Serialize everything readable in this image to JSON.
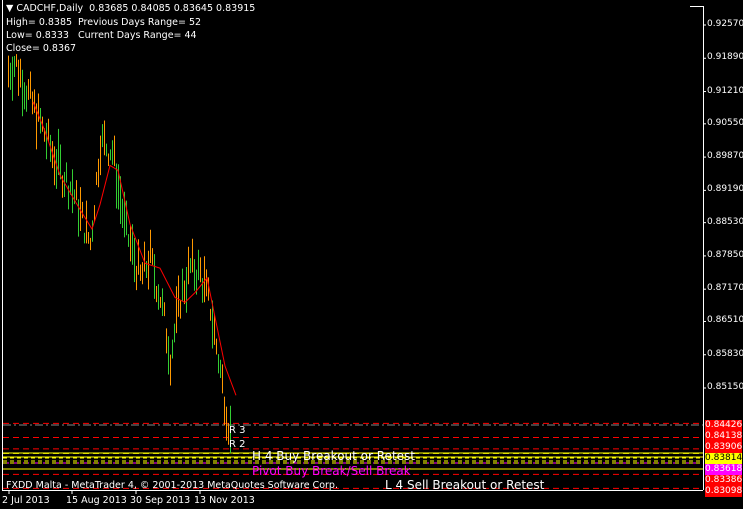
{
  "header": {
    "symbol": "CADCHF,Daily",
    "ohlc": "0.83685 0.84085 0.83645 0.83915",
    "high": "High= 0.8385",
    "low": "Low= 0.8333",
    "close": "Close= 0.8367",
    "prev_range": "Previous Days Range= 52",
    "curr_range": "Current Days Range= 44"
  },
  "price_axis": [
    "0.92570",
    "0.91890",
    "0.91210",
    "0.90550",
    "0.89870",
    "0.89190",
    "0.88530",
    "0.87850",
    "0.87170",
    "0.86510",
    "0.85830",
    "0.85150"
  ],
  "price_axis_values": [
    0.9257,
    0.9189,
    0.9121,
    0.9055,
    0.8987,
    0.8919,
    0.8853,
    0.8785,
    0.8717,
    0.8651,
    0.8583,
    0.8515
  ],
  "levels": [
    {
      "label": "0.84426",
      "value": 0.84426,
      "color": "#ff0000",
      "text_color": "#ffffff"
    },
    {
      "label": "0.84138",
      "value": 0.84138,
      "color": "#ff0000",
      "text_color": "#ffffff"
    },
    {
      "label": "0.83906",
      "value": 0.83906,
      "color": "#ff0000",
      "text_color": "#ffffff"
    },
    {
      "label": "0.83814",
      "value": 0.83814,
      "color": "#ffff00",
      "text_color": "#000000"
    },
    {
      "label": "0.83618",
      "value": 0.83618,
      "color": "#ff00ff",
      "text_color": "#ffffff"
    },
    {
      "label": "0.83386",
      "value": 0.83386,
      "color": "#ff0000",
      "text_color": "#ffffff"
    },
    {
      "label": "0.83098",
      "value": 0.83098,
      "color": "#ff0000",
      "text_color": "#ffffff"
    }
  ],
  "time_axis": [
    "2 Jul 2013",
    "15 Aug 2013",
    "30 Sep 2013",
    "13 Nov 2013"
  ],
  "objects": {
    "r3": "R 3",
    "r2": "R 2",
    "h4": "H 4 Buy Breakout or Retest",
    "pivot": "Pivot Buy Break/Sell Break",
    "l4": "L 4 Sell Breakout or Retest"
  },
  "copyright": "FXDD Malta - MetaTrader 4, © 2001-2013 MetaQuotes Software Corp.",
  "colors": {
    "bull": "#32cd32",
    "bear": "#ff9900",
    "ma": "#ff0000",
    "axis": "#ffffff"
  }
}
